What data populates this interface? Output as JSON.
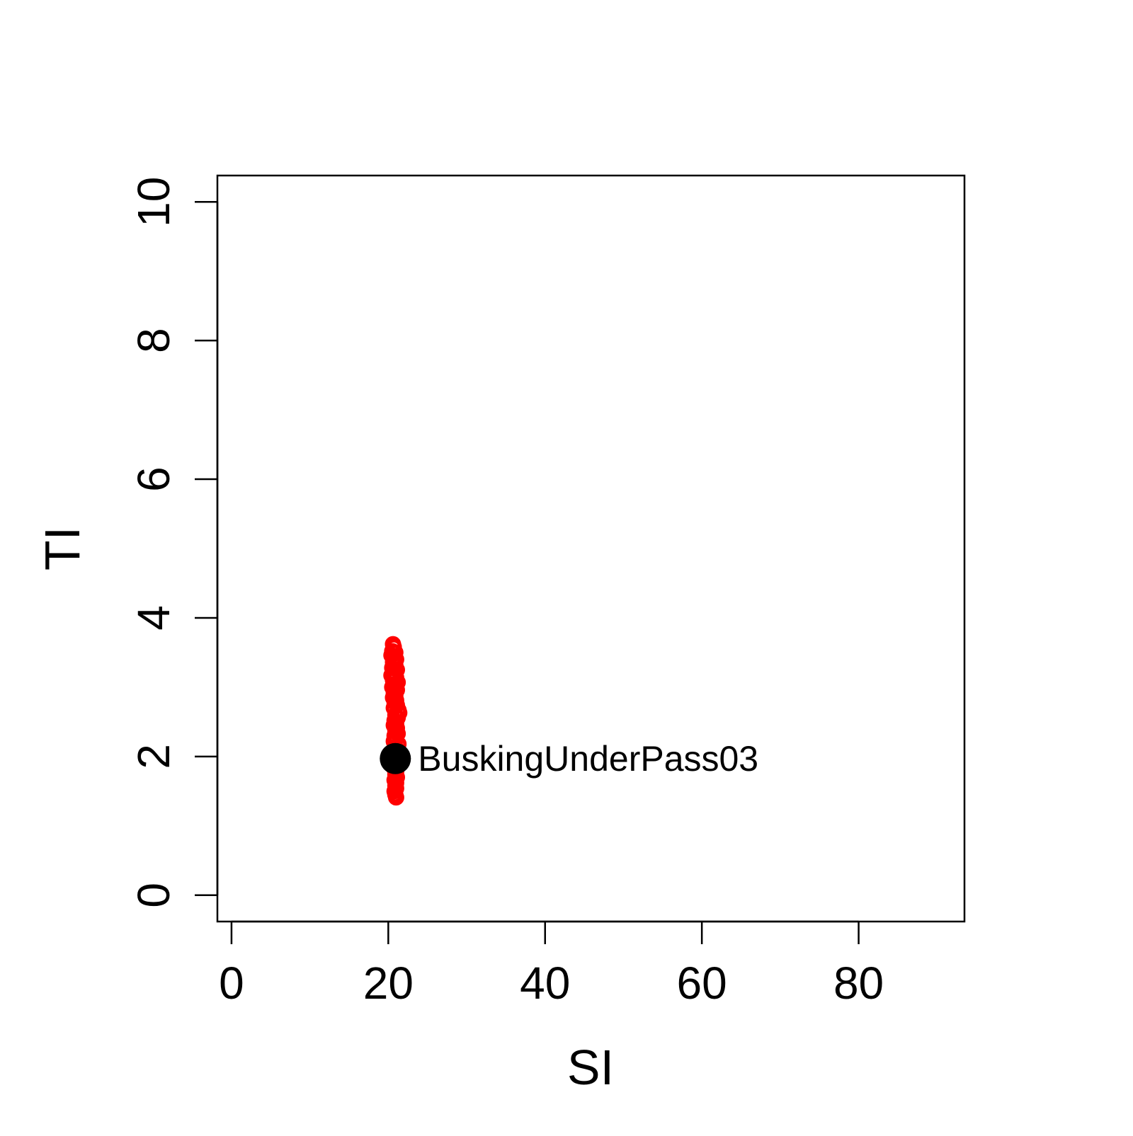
{
  "chart_data": {
    "type": "scatter",
    "xlabel": "SI",
    "ylabel": "TI",
    "xlim": [
      -1.8,
      93.5
    ],
    "ylim": [
      -0.38,
      10.38
    ],
    "x_ticks": [
      0,
      20,
      40,
      60,
      80
    ],
    "y_ticks": [
      0,
      2,
      4,
      6,
      8,
      10
    ],
    "grid": false,
    "series": [
      {
        "marker": "open-circle",
        "color": "#ff0000",
        "points": [
          {
            "x": 20.6,
            "y": 3.62
          },
          {
            "x": 20.7,
            "y": 3.58
          },
          {
            "x": 20.5,
            "y": 3.52
          },
          {
            "x": 20.9,
            "y": 3.5
          },
          {
            "x": 20.4,
            "y": 3.46
          },
          {
            "x": 20.8,
            "y": 3.43
          },
          {
            "x": 21.0,
            "y": 3.4
          },
          {
            "x": 20.6,
            "y": 3.36
          },
          {
            "x": 20.9,
            "y": 3.32
          },
          {
            "x": 20.5,
            "y": 3.28
          },
          {
            "x": 21.1,
            "y": 3.25
          },
          {
            "x": 20.7,
            "y": 3.21
          },
          {
            "x": 20.4,
            "y": 3.17
          },
          {
            "x": 21.0,
            "y": 3.14
          },
          {
            "x": 20.6,
            "y": 3.1
          },
          {
            "x": 21.2,
            "y": 3.07
          },
          {
            "x": 20.8,
            "y": 3.03
          },
          {
            "x": 20.5,
            "y": 3.0
          },
          {
            "x": 21.1,
            "y": 2.96
          },
          {
            "x": 20.7,
            "y": 2.92
          },
          {
            "x": 20.9,
            "y": 2.88
          },
          {
            "x": 20.6,
            "y": 2.85
          },
          {
            "x": 21.0,
            "y": 2.81
          },
          {
            "x": 20.8,
            "y": 2.78
          },
          {
            "x": 21.1,
            "y": 2.74
          },
          {
            "x": 20.7,
            "y": 2.7
          },
          {
            "x": 21.3,
            "y": 2.67
          },
          {
            "x": 21.4,
            "y": 2.63
          },
          {
            "x": 20.9,
            "y": 2.6
          },
          {
            "x": 21.2,
            "y": 2.56
          },
          {
            "x": 20.8,
            "y": 2.52
          },
          {
            "x": 21.0,
            "y": 2.48
          },
          {
            "x": 20.7,
            "y": 2.45
          },
          {
            "x": 21.1,
            "y": 2.41
          },
          {
            "x": 20.9,
            "y": 2.37
          },
          {
            "x": 21.2,
            "y": 2.33
          },
          {
            "x": 20.8,
            "y": 2.3
          },
          {
            "x": 21.0,
            "y": 2.26
          },
          {
            "x": 20.7,
            "y": 2.22
          },
          {
            "x": 21.3,
            "y": 2.18
          },
          {
            "x": 20.9,
            "y": 2.14
          },
          {
            "x": 21.1,
            "y": 2.1
          },
          {
            "x": 20.8,
            "y": 2.06
          },
          {
            "x": 21.0,
            "y": 2.02
          },
          {
            "x": 20.7,
            "y": 1.98
          },
          {
            "x": 21.2,
            "y": 1.94
          },
          {
            "x": 20.9,
            "y": 1.9
          },
          {
            "x": 21.1,
            "y": 1.86
          },
          {
            "x": 20.8,
            "y": 1.82
          },
          {
            "x": 21.0,
            "y": 1.78
          },
          {
            "x": 20.9,
            "y": 1.74
          },
          {
            "x": 21.1,
            "y": 1.7
          },
          {
            "x": 20.8,
            "y": 1.66
          },
          {
            "x": 21.0,
            "y": 1.62
          },
          {
            "x": 20.9,
            "y": 1.58
          },
          {
            "x": 21.0,
            "y": 1.54
          },
          {
            "x": 20.8,
            "y": 1.5
          },
          {
            "x": 20.9,
            "y": 1.45
          },
          {
            "x": 21.0,
            "y": 1.41
          }
        ]
      },
      {
        "marker": "filled-circle",
        "color": "#000000",
        "points": [
          {
            "x": 20.9,
            "y": 1.97,
            "label": "BuskingUnderPass03"
          }
        ]
      }
    ]
  }
}
